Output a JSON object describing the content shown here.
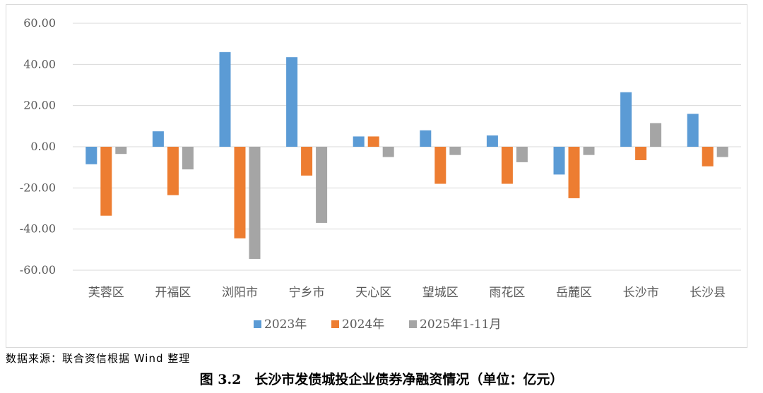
{
  "chart_data": {
    "type": "bar",
    "categories": [
      "芙蓉区",
      "开福区",
      "浏阳市",
      "宁乡市",
      "天心区",
      "望城区",
      "雨花区",
      "岳麓区",
      "长沙市",
      "长沙县"
    ],
    "series": [
      {
        "name": "2023年",
        "color": "#5b9bd5",
        "values": [
          -8.5,
          7.5,
          46.0,
          43.5,
          5.0,
          8.0,
          5.5,
          -13.5,
          26.5,
          16.0
        ]
      },
      {
        "name": "2024年",
        "color": "#ed7d31",
        "values": [
          -33.5,
          -23.5,
          -44.5,
          -14.0,
          5.0,
          -18.0,
          -18.0,
          -25.0,
          -6.5,
          -9.5
        ]
      },
      {
        "name": "2025年1-11月",
        "color": "#a5a5a5",
        "values": [
          -3.5,
          -11.0,
          -54.5,
          -37.0,
          -5.0,
          -4.0,
          -7.5,
          -4.0,
          11.5,
          -5.0
        ]
      }
    ],
    "ylim": [
      -60,
      60
    ],
    "ytick_step": 20,
    "ytick_labels": [
      "60.00",
      "40.00",
      "20.00",
      "0.00",
      "-20.00",
      "-40.00",
      "-60.00"
    ],
    "grid": true,
    "legend_position": "bottom",
    "title": "",
    "xlabel": "",
    "ylabel": ""
  },
  "source_note": "数据来源：联合资信根据 Wind 整理",
  "figure_caption": "图 3.2　长沙市发债城投企业债券净融资情况（单位：亿元）"
}
